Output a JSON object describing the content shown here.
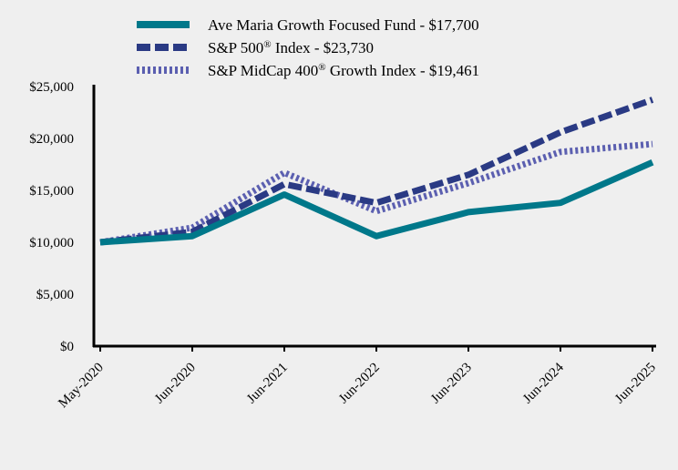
{
  "chart_data": {
    "type": "line",
    "title": "",
    "xlabel": "",
    "ylabel": "",
    "categories": [
      "May-2020",
      "Jun-2020",
      "Jun-2021",
      "Jun-2022",
      "Jun-2023",
      "Jun-2024",
      "Jun-2025"
    ],
    "ylim": [
      0,
      25000
    ],
    "yticks": [
      0,
      5000,
      10000,
      15000,
      20000,
      25000
    ],
    "ytick_labels": [
      "$0",
      "$5,000",
      "$10,000",
      "$15,000",
      "$20,000",
      "$25,000"
    ],
    "grid": false,
    "legend_position": "top",
    "series": [
      {
        "name": "Ave Maria Growth Focused Fund - $17,700",
        "legend_parts": [
          "Ave Maria Growth Focused Fund - $17,700"
        ],
        "style": "solid",
        "color": "#00788a",
        "values": [
          10000,
          10600,
          14600,
          10600,
          12900,
          13800,
          17700
        ]
      },
      {
        "name": "S&P 500® Index - $23,730",
        "legend_parts": [
          "S&P 500",
          "®",
          " Index - $23,730"
        ],
        "style": "dashed",
        "color": "#2a3a84",
        "values": [
          10000,
          11000,
          15600,
          13800,
          16500,
          20600,
          23730
        ]
      },
      {
        "name": "S&P MidCap 400® Growth Index - $19,461",
        "legend_parts": [
          "S&P MidCap 400",
          "®",
          " Growth Index - $19,461"
        ],
        "style": "dotted",
        "color": "#5b5fb0",
        "values": [
          10000,
          11400,
          16700,
          13000,
          15700,
          18700,
          19461
        ]
      }
    ]
  }
}
